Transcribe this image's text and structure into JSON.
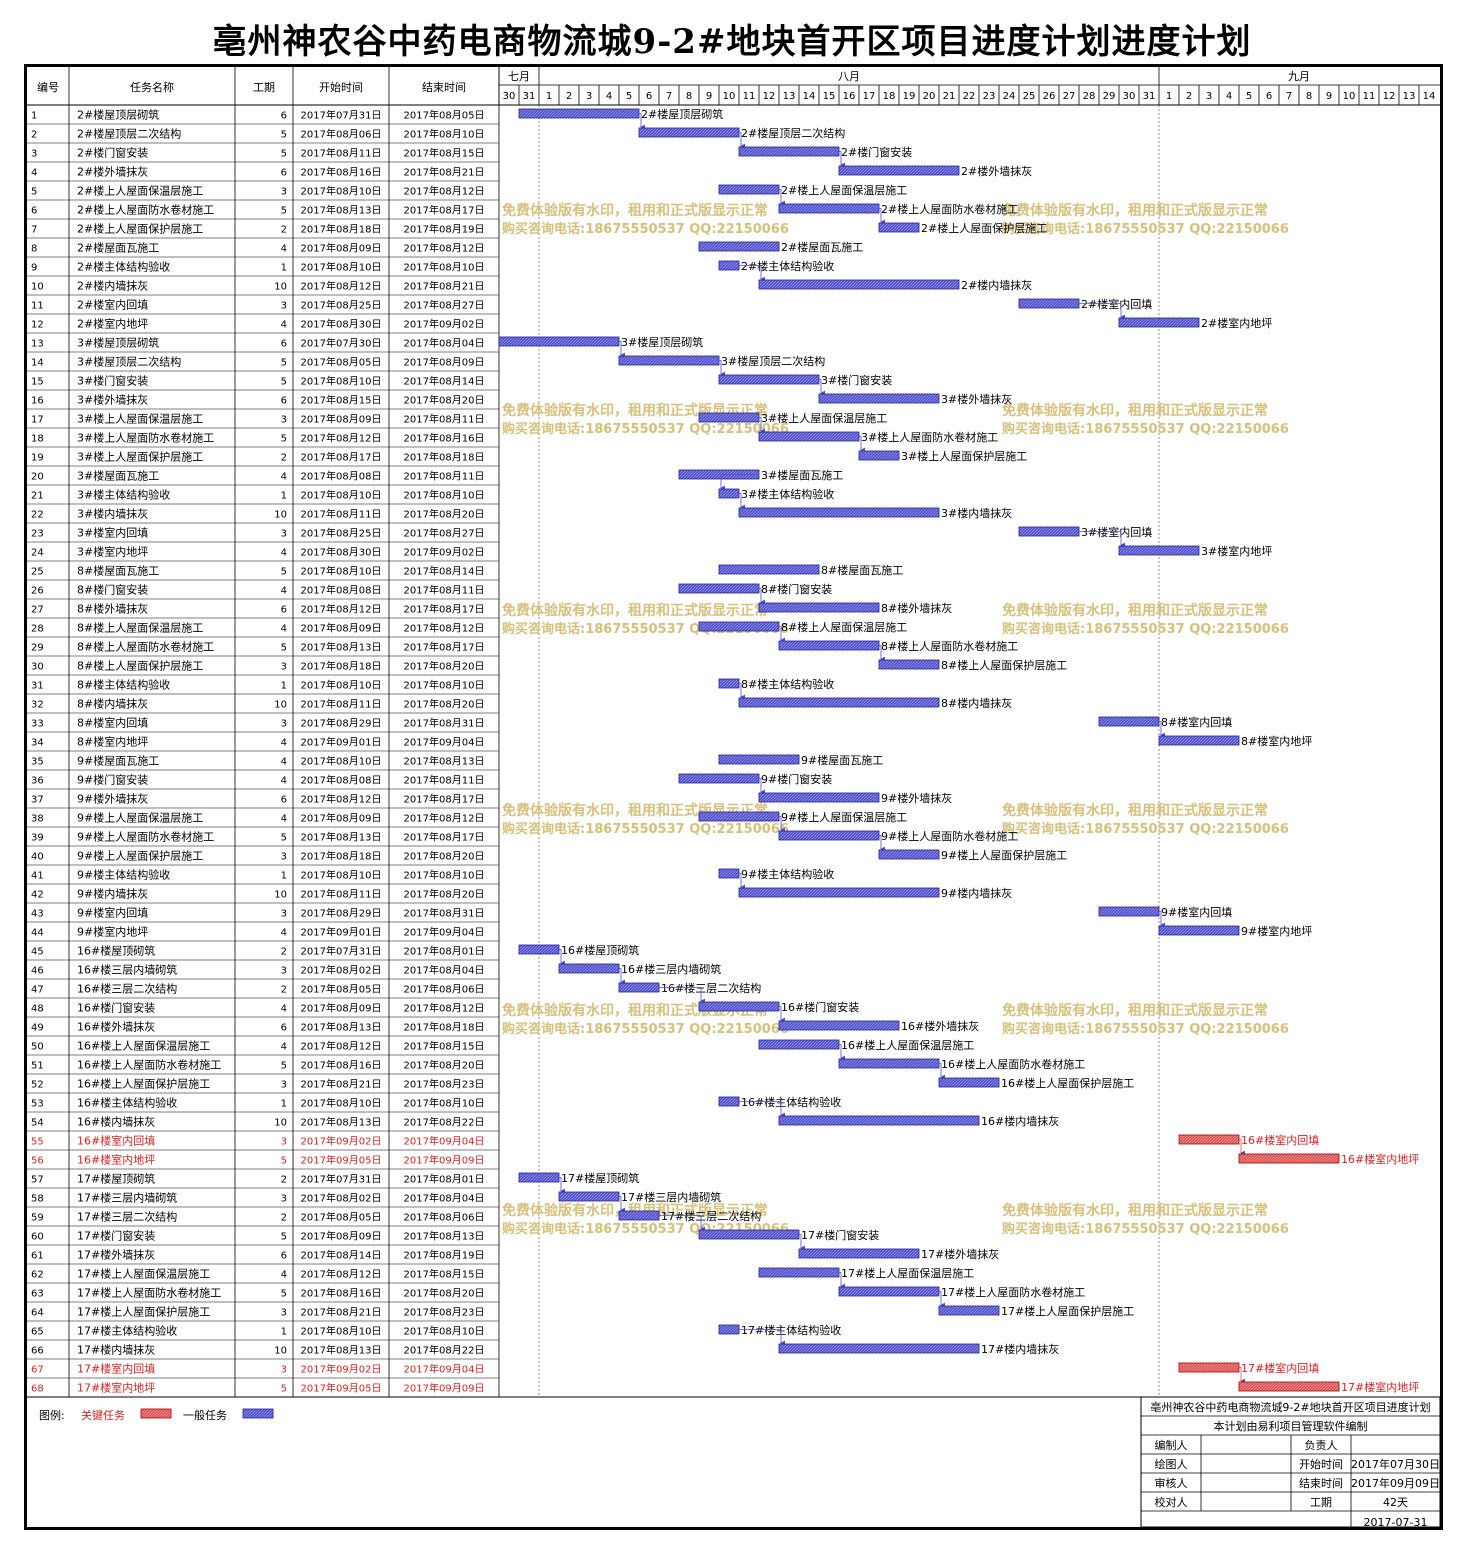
{
  "title": "亳州神农谷中药电商物流城9-2#地块首开区项目进度计划进度计划",
  "columns": {
    "no": "编号",
    "name": "任务名称",
    "dur": "工期",
    "start": "开始时间",
    "end": "结束时间"
  },
  "months": [
    {
      "label": "七月",
      "days": [
        30,
        31
      ]
    },
    {
      "label": "八月",
      "days": [
        1,
        2,
        3,
        4,
        5,
        6,
        7,
        8,
        9,
        10,
        11,
        12,
        13,
        14,
        15,
        16,
        17,
        18,
        19,
        20,
        21,
        22,
        23,
        24,
        25,
        26,
        27,
        28,
        29,
        30,
        31
      ]
    },
    {
      "label": "九月",
      "days": [
        1,
        2,
        3,
        4,
        5,
        6,
        7,
        8,
        9,
        10,
        11,
        12,
        13,
        14
      ]
    }
  ],
  "watermark": {
    "line1": "免费体验版有水印，租用和正式版显示正常",
    "line2": "购买咨询电话:18675550537 QQ:22150066"
  },
  "legend": {
    "label": "图例:",
    "critical": "关键任务",
    "normal": "一般任务",
    "critical_color": "#e05252",
    "normal_color": "#5050d0"
  },
  "footer": {
    "project": "亳州神农谷中药电商物流城9-2#地块首开区项目进度计划",
    "software": "本计划由易利项目管理软件编制",
    "editor": "编制人",
    "drawer": "绘图人",
    "reviewer": "审核人",
    "checker": "校对人",
    "owner": "负责人",
    "start_label": "开始时间",
    "start_value": "2017年07月30日",
    "end_label": "结束时间",
    "end_value": "2017年09月09日",
    "duration_label": "工期",
    "duration_value": "42天",
    "date": "2017-07-31"
  },
  "chart_data": {
    "type": "gantt",
    "timeline_start": "2017-07-30",
    "timeline_end": "2017-09-14",
    "tasks": [
      {
        "no": 1,
        "name": "2#楼屋顶层砌筑",
        "dur": 6,
        "start": "2017年07月31日",
        "end": "2017年08月05日",
        "critical": false
      },
      {
        "no": 2,
        "name": "2#楼屋顶层二次结构",
        "dur": 5,
        "start": "2017年08月06日",
        "end": "2017年08月10日",
        "critical": false
      },
      {
        "no": 3,
        "name": "2#楼门窗安装",
        "dur": 5,
        "start": "2017年08月11日",
        "end": "2017年08月15日",
        "critical": false
      },
      {
        "no": 4,
        "name": "2#楼外墙抹灰",
        "dur": 6,
        "start": "2017年08月16日",
        "end": "2017年08月21日",
        "critical": false
      },
      {
        "no": 5,
        "name": "2#楼上人屋面保温层施工",
        "dur": 3,
        "start": "2017年08月10日",
        "end": "2017年08月12日",
        "critical": false
      },
      {
        "no": 6,
        "name": "2#楼上人屋面防水卷材施工",
        "dur": 5,
        "start": "2017年08月13日",
        "end": "2017年08月17日",
        "critical": false
      },
      {
        "no": 7,
        "name": "2#楼上人屋面保护层施工",
        "dur": 2,
        "start": "2017年08月18日",
        "end": "2017年08月19日",
        "critical": false
      },
      {
        "no": 8,
        "name": "2#楼屋面瓦施工",
        "dur": 4,
        "start": "2017年08月09日",
        "end": "2017年08月12日",
        "critical": false
      },
      {
        "no": 9,
        "name": "2#楼主体结构验收",
        "dur": 1,
        "start": "2017年08月10日",
        "end": "2017年08月10日",
        "critical": false
      },
      {
        "no": 10,
        "name": "2#楼内墙抹灰",
        "dur": 10,
        "start": "2017年08月12日",
        "end": "2017年08月21日",
        "critical": false
      },
      {
        "no": 11,
        "name": "2#楼室内回填",
        "dur": 3,
        "start": "2017年08月25日",
        "end": "2017年08月27日",
        "critical": false
      },
      {
        "no": 12,
        "name": "2#楼室内地坪",
        "dur": 4,
        "start": "2017年08月30日",
        "end": "2017年09月02日",
        "critical": false
      },
      {
        "no": 13,
        "name": "3#楼屋顶层砌筑",
        "dur": 6,
        "start": "2017年07月30日",
        "end": "2017年08月04日",
        "critical": false
      },
      {
        "no": 14,
        "name": "3#楼屋顶层二次结构",
        "dur": 5,
        "start": "2017年08月05日",
        "end": "2017年08月09日",
        "critical": false
      },
      {
        "no": 15,
        "name": "3#楼门窗安装",
        "dur": 5,
        "start": "2017年08月10日",
        "end": "2017年08月14日",
        "critical": false
      },
      {
        "no": 16,
        "name": "3#楼外墙抹灰",
        "dur": 6,
        "start": "2017年08月15日",
        "end": "2017年08月20日",
        "critical": false
      },
      {
        "no": 17,
        "name": "3#楼上人屋面保温层施工",
        "dur": 3,
        "start": "2017年08月09日",
        "end": "2017年08月11日",
        "critical": false
      },
      {
        "no": 18,
        "name": "3#楼上人屋面防水卷材施工",
        "dur": 5,
        "start": "2017年08月12日",
        "end": "2017年08月16日",
        "critical": false
      },
      {
        "no": 19,
        "name": "3#楼上人屋面保护层施工",
        "dur": 2,
        "start": "2017年08月17日",
        "end": "2017年08月18日",
        "critical": false
      },
      {
        "no": 20,
        "name": "3#楼屋面瓦施工",
        "dur": 4,
        "start": "2017年08月08日",
        "end": "2017年08月11日",
        "critical": false
      },
      {
        "no": 21,
        "name": "3#楼主体结构验收",
        "dur": 1,
        "start": "2017年08月10日",
        "end": "2017年08月10日",
        "critical": false
      },
      {
        "no": 22,
        "name": "3#楼内墙抹灰",
        "dur": 10,
        "start": "2017年08月11日",
        "end": "2017年08月20日",
        "critical": false
      },
      {
        "no": 23,
        "name": "3#楼室内回填",
        "dur": 3,
        "start": "2017年08月25日",
        "end": "2017年08月27日",
        "critical": false
      },
      {
        "no": 24,
        "name": "3#楼室内地坪",
        "dur": 4,
        "start": "2017年08月30日",
        "end": "2017年09月02日",
        "critical": false
      },
      {
        "no": 25,
        "name": "8#楼屋面瓦施工",
        "dur": 5,
        "start": "2017年08月10日",
        "end": "2017年08月14日",
        "critical": false
      },
      {
        "no": 26,
        "name": "8#楼门窗安装",
        "dur": 4,
        "start": "2017年08月08日",
        "end": "2017年08月11日",
        "critical": false
      },
      {
        "no": 27,
        "name": "8#楼外墙抹灰",
        "dur": 6,
        "start": "2017年08月12日",
        "end": "2017年08月17日",
        "critical": false
      },
      {
        "no": 28,
        "name": "8#楼上人屋面保温层施工",
        "dur": 4,
        "start": "2017年08月09日",
        "end": "2017年08月12日",
        "critical": false
      },
      {
        "no": 29,
        "name": "8#楼上人屋面防水卷材施工",
        "dur": 5,
        "start": "2017年08月13日",
        "end": "2017年08月17日",
        "critical": false
      },
      {
        "no": 30,
        "name": "8#楼上人屋面保护层施工",
        "dur": 3,
        "start": "2017年08月18日",
        "end": "2017年08月20日",
        "critical": false
      },
      {
        "no": 31,
        "name": "8#楼主体结构验收",
        "dur": 1,
        "start": "2017年08月10日",
        "end": "2017年08月10日",
        "critical": false
      },
      {
        "no": 32,
        "name": "8#楼内墙抹灰",
        "dur": 10,
        "start": "2017年08月11日",
        "end": "2017年08月20日",
        "critical": false
      },
      {
        "no": 33,
        "name": "8#楼室内回填",
        "dur": 3,
        "start": "2017年08月29日",
        "end": "2017年08月31日",
        "critical": false
      },
      {
        "no": 34,
        "name": "8#楼室内地坪",
        "dur": 4,
        "start": "2017年09月01日",
        "end": "2017年09月04日",
        "critical": false
      },
      {
        "no": 35,
        "name": "9#楼屋面瓦施工",
        "dur": 4,
        "start": "2017年08月10日",
        "end": "2017年08月13日",
        "critical": false
      },
      {
        "no": 36,
        "name": "9#楼门窗安装",
        "dur": 4,
        "start": "2017年08月08日",
        "end": "2017年08月11日",
        "critical": false
      },
      {
        "no": 37,
        "name": "9#楼外墙抹灰",
        "dur": 6,
        "start": "2017年08月12日",
        "end": "2017年08月17日",
        "critical": false
      },
      {
        "no": 38,
        "name": "9#楼上人屋面保温层施工",
        "dur": 4,
        "start": "2017年08月09日",
        "end": "2017年08月12日",
        "critical": false
      },
      {
        "no": 39,
        "name": "9#楼上人屋面防水卷材施工",
        "dur": 5,
        "start": "2017年08月13日",
        "end": "2017年08月17日",
        "critical": false
      },
      {
        "no": 40,
        "name": "9#楼上人屋面保护层施工",
        "dur": 3,
        "start": "2017年08月18日",
        "end": "2017年08月20日",
        "critical": false
      },
      {
        "no": 41,
        "name": "9#楼主体结构验收",
        "dur": 1,
        "start": "2017年08月10日",
        "end": "2017年08月10日",
        "critical": false
      },
      {
        "no": 42,
        "name": "9#楼内墙抹灰",
        "dur": 10,
        "start": "2017年08月11日",
        "end": "2017年08月20日",
        "critical": false
      },
      {
        "no": 43,
        "name": "9#楼室内回填",
        "dur": 3,
        "start": "2017年08月29日",
        "end": "2017年08月31日",
        "critical": false
      },
      {
        "no": 44,
        "name": "9#楼室内地坪",
        "dur": 4,
        "start": "2017年09月01日",
        "end": "2017年09月04日",
        "critical": false
      },
      {
        "no": 45,
        "name": "16#楼屋顶砌筑",
        "dur": 2,
        "start": "2017年07月31日",
        "end": "2017年08月01日",
        "critical": false
      },
      {
        "no": 46,
        "name": "16#楼三层内墙砌筑",
        "dur": 3,
        "start": "2017年08月02日",
        "end": "2017年08月04日",
        "critical": false
      },
      {
        "no": 47,
        "name": "16#楼三层二次结构",
        "dur": 2,
        "start": "2017年08月05日",
        "end": "2017年08月06日",
        "critical": false
      },
      {
        "no": 48,
        "name": "16#楼门窗安装",
        "dur": 4,
        "start": "2017年08月09日",
        "end": "2017年08月12日",
        "critical": false
      },
      {
        "no": 49,
        "name": "16#楼外墙抹灰",
        "dur": 6,
        "start": "2017年08月13日",
        "end": "2017年08月18日",
        "critical": false
      },
      {
        "no": 50,
        "name": "16#楼上人屋面保温层施工",
        "dur": 4,
        "start": "2017年08月12日",
        "end": "2017年08月15日",
        "critical": false
      },
      {
        "no": 51,
        "name": "16#楼上人屋面防水卷材施工",
        "dur": 5,
        "start": "2017年08月16日",
        "end": "2017年08月20日",
        "critical": false
      },
      {
        "no": 52,
        "name": "16#楼上人屋面保护层施工",
        "dur": 3,
        "start": "2017年08月21日",
        "end": "2017年08月23日",
        "critical": false
      },
      {
        "no": 53,
        "name": "16#楼主体结构验收",
        "dur": 1,
        "start": "2017年08月10日",
        "end": "2017年08月10日",
        "critical": false
      },
      {
        "no": 54,
        "name": "16#楼内墙抹灰",
        "dur": 10,
        "start": "2017年08月13日",
        "end": "2017年08月22日",
        "critical": false
      },
      {
        "no": 55,
        "name": "16#楼室内回填",
        "dur": 3,
        "start": "2017年09月02日",
        "end": "2017年09月04日",
        "critical": true
      },
      {
        "no": 56,
        "name": "16#楼室内地坪",
        "dur": 5,
        "start": "2017年09月05日",
        "end": "2017年09月09日",
        "critical": true
      },
      {
        "no": 57,
        "name": "17#楼屋顶砌筑",
        "dur": 2,
        "start": "2017年07月31日",
        "end": "2017年08月01日",
        "critical": false
      },
      {
        "no": 58,
        "name": "17#楼三层内墙砌筑",
        "dur": 3,
        "start": "2017年08月02日",
        "end": "2017年08月04日",
        "critical": false
      },
      {
        "no": 59,
        "name": "17#楼三层二次结构",
        "dur": 2,
        "start": "2017年08月05日",
        "end": "2017年08月06日",
        "critical": false
      },
      {
        "no": 60,
        "name": "17#楼门窗安装",
        "dur": 5,
        "start": "2017年08月09日",
        "end": "2017年08月13日",
        "critical": false
      },
      {
        "no": 61,
        "name": "17#楼外墙抹灰",
        "dur": 6,
        "start": "2017年08月14日",
        "end": "2017年08月19日",
        "critical": false
      },
      {
        "no": 62,
        "name": "17#楼上人屋面保温层施工",
        "dur": 4,
        "start": "2017年08月12日",
        "end": "2017年08月15日",
        "critical": false
      },
      {
        "no": 63,
        "name": "17#楼上人屋面防水卷材施工",
        "dur": 5,
        "start": "2017年08月16日",
        "end": "2017年08月20日",
        "critical": false
      },
      {
        "no": 64,
        "name": "17#楼上人屋面保护层施工",
        "dur": 3,
        "start": "2017年08月21日",
        "end": "2017年08月23日",
        "critical": false
      },
      {
        "no": 65,
        "name": "17#楼主体结构验收",
        "dur": 1,
        "start": "2017年08月10日",
        "end": "2017年08月10日",
        "critical": false
      },
      {
        "no": 66,
        "name": "17#楼内墙抹灰",
        "dur": 10,
        "start": "2017年08月13日",
        "end": "2017年08月22日",
        "critical": false
      },
      {
        "no": 67,
        "name": "17#楼室内回填",
        "dur": 3,
        "start": "2017年09月02日",
        "end": "2017年09月04日",
        "critical": true
      },
      {
        "no": 68,
        "name": "17#楼室内地坪",
        "dur": 5,
        "start": "2017年09月05日",
        "end": "2017年09月09日",
        "critical": true
      }
    ]
  }
}
